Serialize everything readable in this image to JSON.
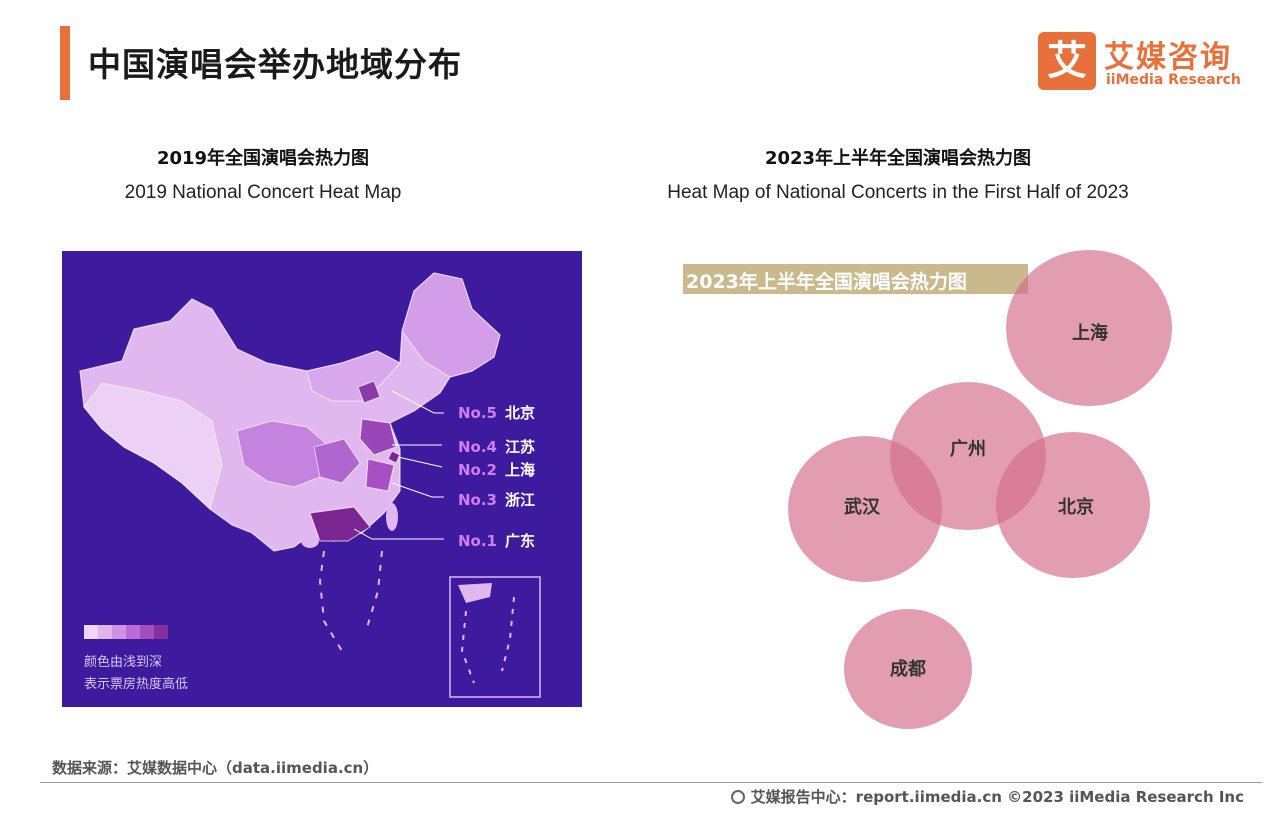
{
  "header": {
    "title": "中国演唱会举办地域分布",
    "logo_mark": "艾",
    "logo_cn": "艾媒咨询",
    "logo_en": "iiMedia Research"
  },
  "left_panel": {
    "caption_cn": "2019年全国演唱会热力图",
    "caption_en": "2019 National Concert Heat Map",
    "rankings": [
      {
        "no": "No.5",
        "city": "北京"
      },
      {
        "no": "No.4",
        "city": "江苏"
      },
      {
        "no": "No.2",
        "city": "上海"
      },
      {
        "no": "No.3",
        "city": "浙江"
      },
      {
        "no": "No.1",
        "city": "广东"
      }
    ],
    "legend_line1": "颜色由浅到深",
    "legend_line2": "表示票房热度高低",
    "colors": {
      "background": "#3d1a9e",
      "scale": [
        "#f0d5f7",
        "#e2b4ee",
        "#d091e4",
        "#bb6cd6",
        "#a24cc0",
        "#842f9e"
      ]
    }
  },
  "right_panel": {
    "caption_cn": "2023年上半年全国演唱会热力图",
    "caption_en": "Heat Map of National Concerts in the First Half of 2023",
    "banner": "2023年上半年全国演唱会热力图",
    "bubbles": [
      {
        "city": "上海"
      },
      {
        "city": "广州"
      },
      {
        "city": "武汉"
      },
      {
        "city": "北京"
      },
      {
        "city": "成都"
      }
    ]
  },
  "footer": {
    "source": "数据来源：艾媒数据中心（data.iimedia.cn）",
    "report": "艾媒报告中心：report.iimedia.cn ©2023 iiMedia Research Inc"
  }
}
